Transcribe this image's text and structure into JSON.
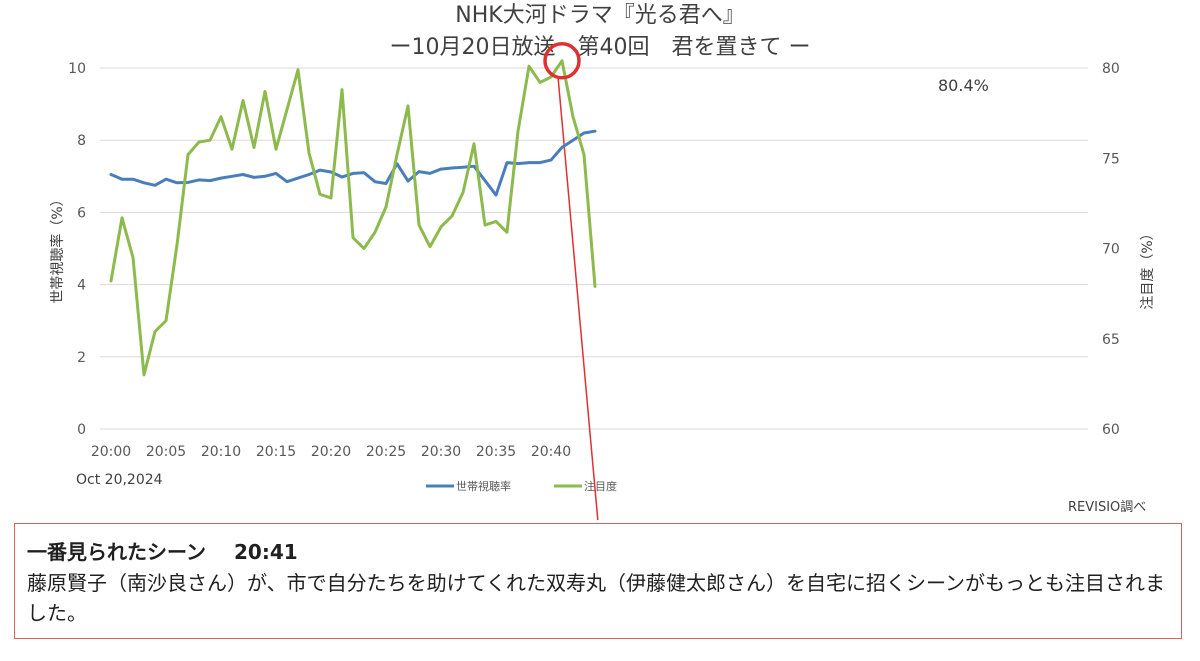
{
  "chart_data": {
    "type": "line",
    "title": "NHK大河ドラマ『光る君へ』",
    "subtitle": "ー10月20日放送　第40回　君を置きて ー",
    "ylabel_left": "世帯視聴率（%）",
    "ylabel_right": "注目度（%）",
    "ylim_left": [
      0,
      10
    ],
    "yticks_left": [
      "0",
      "2",
      "4",
      "6",
      "8",
      "10"
    ],
    "ylim_right": [
      60,
      80
    ],
    "yticks_right": [
      "60",
      "65",
      "70",
      "75",
      "80"
    ],
    "x_tick_labels": [
      "20:00",
      "20:05",
      "20:10",
      "20:15",
      "20:20",
      "20:25",
      "20:30",
      "20:35",
      "20:40"
    ],
    "x": [
      "20:00",
      "20:01",
      "20:02",
      "20:03",
      "20:04",
      "20:05",
      "20:06",
      "20:07",
      "20:08",
      "20:09",
      "20:10",
      "20:11",
      "20:12",
      "20:13",
      "20:14",
      "20:15",
      "20:16",
      "20:17",
      "20:18",
      "20:19",
      "20:20",
      "20:21",
      "20:22",
      "20:23",
      "20:24",
      "20:25",
      "20:26",
      "20:27",
      "20:28",
      "20:29",
      "20:30",
      "20:31",
      "20:32",
      "20:33",
      "20:34",
      "20:35",
      "20:36",
      "20:37",
      "20:38",
      "20:39",
      "20:40",
      "20:41",
      "20:42",
      "20:43",
      "20:44"
    ],
    "series": [
      {
        "name": "世帯視聴率",
        "axis": "left",
        "color": "#4a7ebb",
        "values": [
          7.05,
          6.92,
          6.92,
          6.82,
          6.75,
          6.92,
          6.82,
          6.83,
          6.9,
          6.88,
          6.95,
          7.0,
          7.05,
          6.97,
          7.0,
          7.08,
          6.85,
          6.95,
          7.05,
          7.17,
          7.12,
          6.98,
          7.08,
          7.1,
          6.85,
          6.8,
          7.35,
          6.87,
          7.13,
          7.08,
          7.2,
          7.23,
          7.25,
          7.28,
          6.88,
          6.48,
          7.38,
          7.35,
          7.38,
          7.38,
          7.45,
          7.8,
          8.0,
          8.2,
          8.25
        ]
      },
      {
        "name": "注目度",
        "axis": "right",
        "color": "#8cba4c",
        "values": [
          68.2,
          71.7,
          69.5,
          63.0,
          65.4,
          66.0,
          70.2,
          75.2,
          75.9,
          76.0,
          77.3,
          75.5,
          78.2,
          75.6,
          78.7,
          75.5,
          77.7,
          79.9,
          75.3,
          73.0,
          72.8,
          78.8,
          70.6,
          70.0,
          70.9,
          72.3,
          75.2,
          77.9,
          71.3,
          70.1,
          71.2,
          71.8,
          73.1,
          75.8,
          71.3,
          71.5,
          70.9,
          76.5,
          80.1,
          79.2,
          79.5,
          80.4,
          77.3,
          75.2,
          67.9
        ]
      }
    ],
    "annotation": {
      "label": "80.4%",
      "x": "20:41",
      "series": "注目度",
      "value": 80.4
    },
    "legend_position": "bottom"
  },
  "date_label": "Oct 20,2024",
  "source_label": "REVISIO調べ",
  "highlight_color": "#e03030",
  "scene": {
    "heading": "一番見られたシーン",
    "time": "20:41",
    "description": "藤原賢子（南沙良さん）が、市で自分たちを助けてくれた双寿丸（伊藤健太郎さん）を自宅に招くシーンがもっとも注目されました。"
  }
}
